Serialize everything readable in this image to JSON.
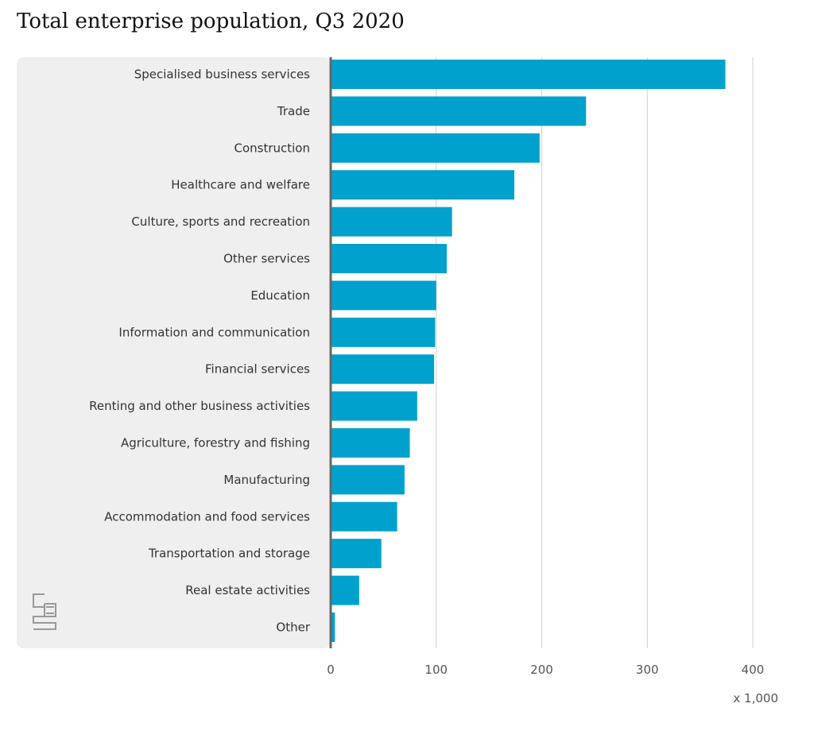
{
  "page": {
    "title": "Total enterprise population, Q3 2020"
  },
  "colors": {
    "bar": "#00a1cd",
    "panel": "#efefef",
    "grid": "#cfcfcf",
    "axis": "#666666",
    "logo": "#999999"
  },
  "logo": {
    "icon": "cbs-logo-icon"
  },
  "chart_data": {
    "type": "bar",
    "orientation": "horizontal",
    "title": "Total enterprise population, Q3 2020",
    "categories": [
      "Specialised business services",
      "Trade",
      "Construction",
      "Healthcare and welfare",
      "Culture, sports and recreation",
      "Other services",
      "Education",
      "Information and communication",
      "Financial services",
      "Renting and other business activities",
      "Agriculture, forestry and fishing",
      "Manufacturing",
      "Accommodation and food services",
      "Transportation and storage",
      "Real estate activities",
      "Other"
    ],
    "values": [
      374,
      242,
      198,
      174,
      115,
      110,
      100,
      99,
      98,
      82,
      75,
      70,
      63,
      48,
      27,
      4
    ],
    "xlim": [
      0,
      400
    ],
    "xticks": [
      0,
      100,
      200,
      300,
      400
    ],
    "xunit": "x 1,000",
    "grid": true
  }
}
